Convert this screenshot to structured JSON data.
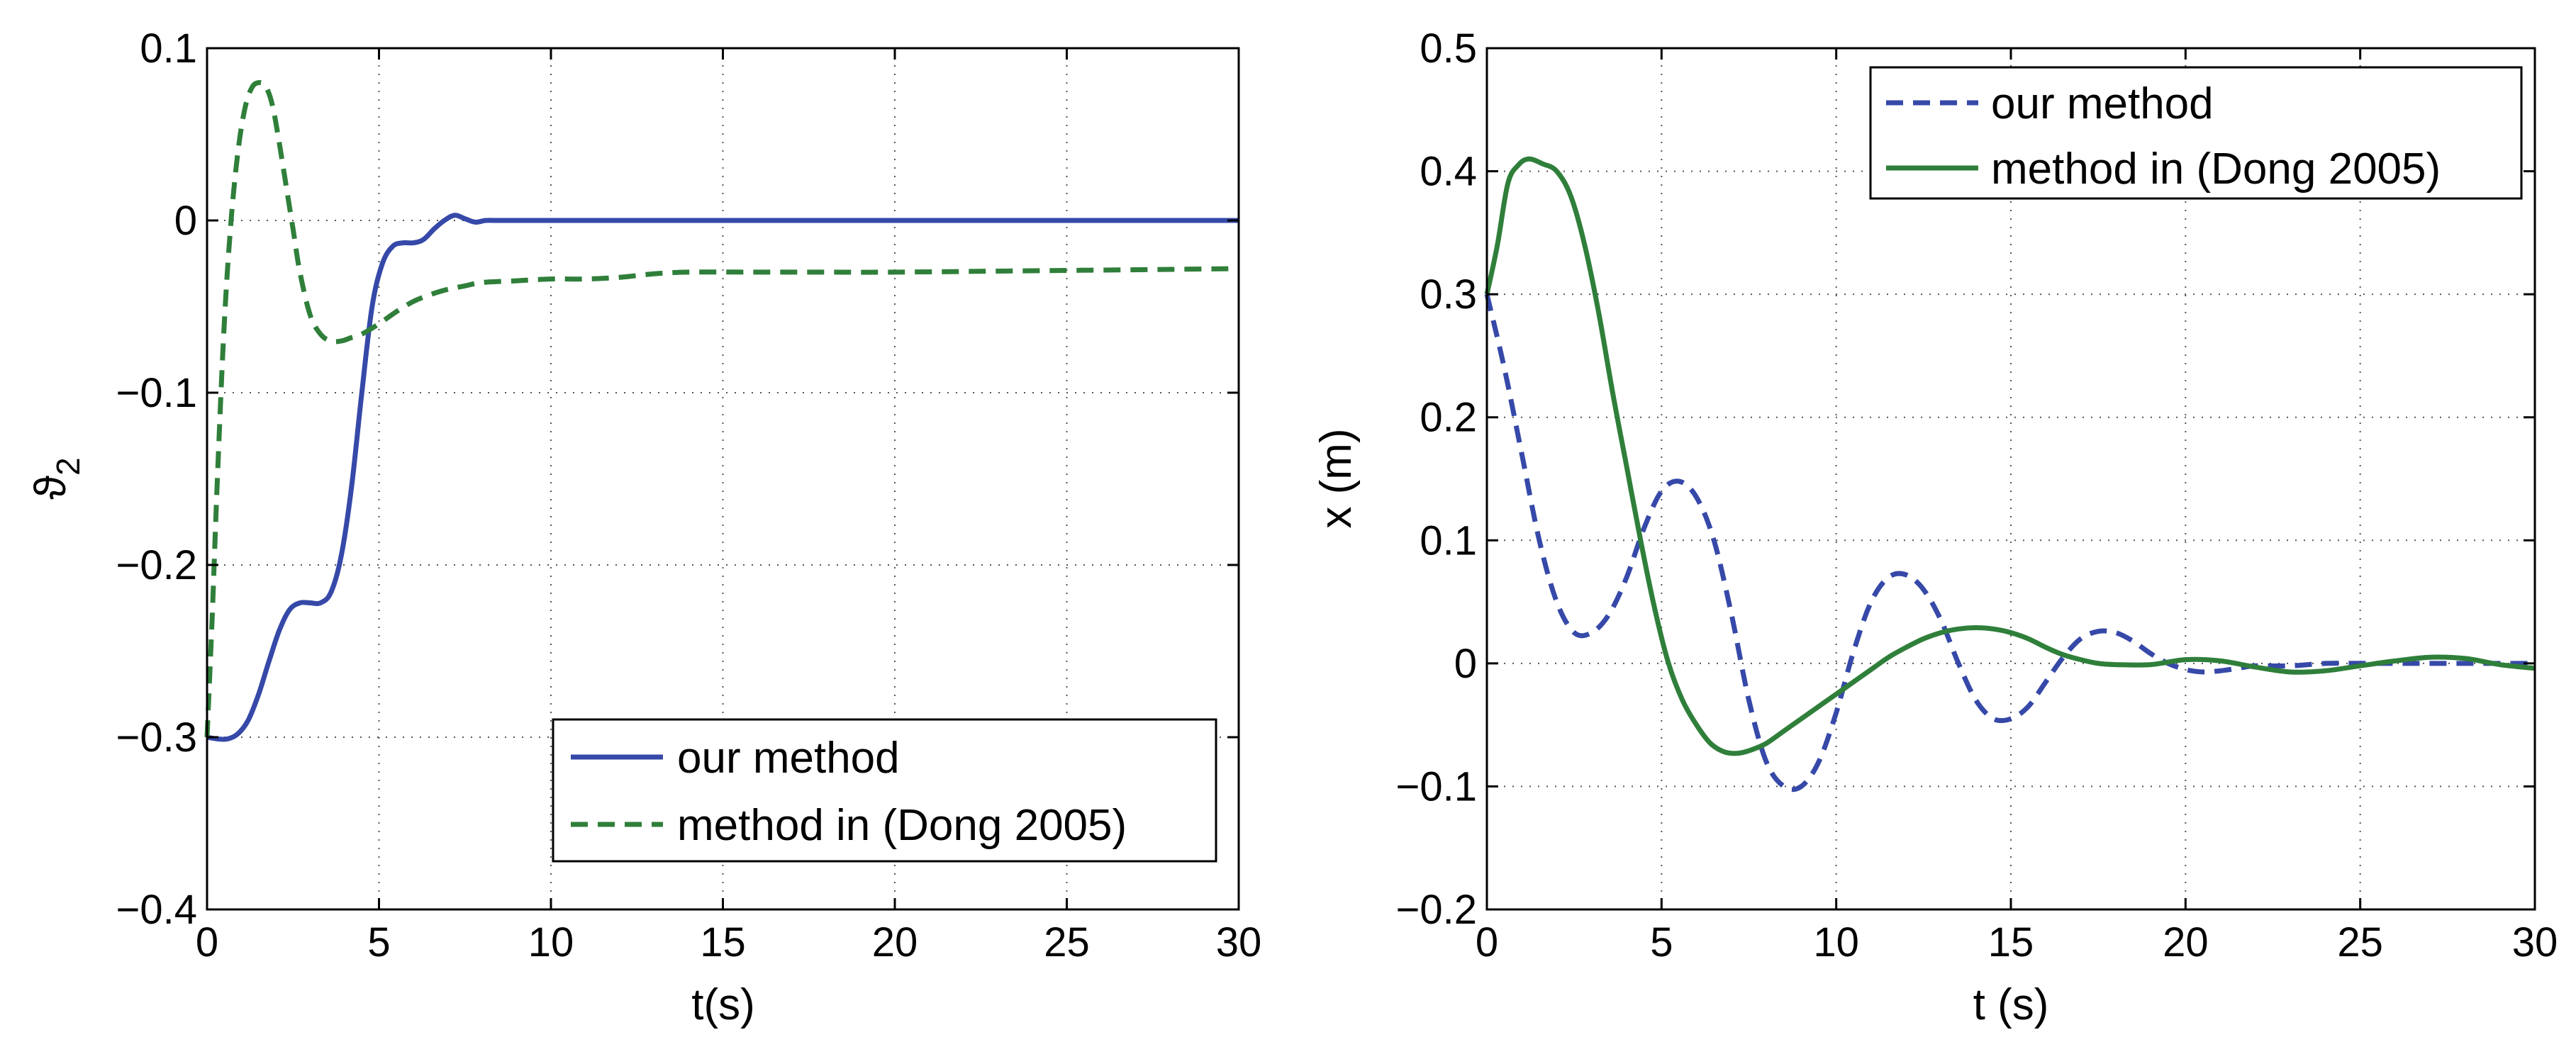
{
  "chart_data": [
    {
      "type": "line",
      "xlabel": "t(s)",
      "ylabel": "ϑ",
      "ylabel_subscript": "2",
      "xlim": [
        0,
        30
      ],
      "ylim": [
        -0.4,
        0.1
      ],
      "xticks": [
        0,
        5,
        10,
        15,
        20,
        25,
        30
      ],
      "xtick_labels": [
        "0",
        "5",
        "10",
        "15",
        "20",
        "25",
        "30"
      ],
      "yticks": [
        -0.4,
        -0.3,
        -0.2,
        -0.1,
        0,
        0.1
      ],
      "ytick_labels": [
        "−0.4",
        "−0.3",
        "−0.2",
        "−0.1",
        "0",
        "0.1"
      ],
      "grid": true,
      "legend_position": "bottom-right",
      "series": [
        {
          "name": "our method",
          "color": "#3649a8",
          "style": "solid",
          "x": [
            0,
            0.3,
            0.6,
            0.9,
            1.2,
            1.5,
            1.8,
            2.1,
            2.4,
            2.7,
            3.0,
            3.3,
            3.6,
            3.9,
            4.2,
            4.5,
            4.8,
            5.1,
            5.4,
            5.7,
            6.0,
            6.3,
            6.6,
            6.9,
            7.2,
            7.5,
            7.8,
            8.1,
            8.4,
            9.0,
            10,
            12,
            15,
            20,
            25,
            30
          ],
          "y": [
            -0.3,
            -0.301,
            -0.301,
            -0.298,
            -0.29,
            -0.275,
            -0.256,
            -0.238,
            -0.226,
            -0.222,
            -0.222,
            -0.222,
            -0.216,
            -0.195,
            -0.155,
            -0.1,
            -0.05,
            -0.025,
            -0.015,
            -0.013,
            -0.013,
            -0.011,
            -0.005,
            0.0,
            0.003,
            0.001,
            -0.001,
            0.0,
            0.0,
            0.0,
            0.0,
            0.0,
            0.0,
            0.0,
            0.0,
            0.0
          ]
        },
        {
          "name": "method in (Dong 2005)",
          "color": "#2f7f3a",
          "style": "dashed",
          "x": [
            0,
            0.15,
            0.3,
            0.5,
            0.7,
            0.9,
            1.1,
            1.3,
            1.5,
            1.7,
            1.9,
            2.1,
            2.3,
            2.5,
            2.7,
            3.0,
            3.3,
            3.6,
            3.9,
            4.2,
            4.5,
            5.0,
            5.5,
            6.0,
            6.5,
            7.0,
            7.5,
            8.0,
            9.0,
            10,
            11,
            12,
            13,
            14,
            16,
            18,
            20,
            25,
            30
          ],
          "y": [
            -0.3,
            -0.23,
            -0.15,
            -0.06,
            0.0,
            0.04,
            0.065,
            0.077,
            0.08,
            0.078,
            0.067,
            0.045,
            0.02,
            -0.005,
            -0.03,
            -0.055,
            -0.066,
            -0.07,
            -0.07,
            -0.068,
            -0.066,
            -0.06,
            -0.053,
            -0.047,
            -0.043,
            -0.04,
            -0.038,
            -0.036,
            -0.035,
            -0.034,
            -0.034,
            -0.033,
            -0.031,
            -0.03,
            -0.03,
            -0.03,
            -0.03,
            -0.029,
            -0.028
          ]
        }
      ]
    },
    {
      "type": "line",
      "xlabel": "t (s)",
      "ylabel": "x (m)",
      "xlim": [
        0,
        30
      ],
      "ylim": [
        -0.2,
        0.5
      ],
      "xticks": [
        0,
        5,
        10,
        15,
        20,
        25,
        30
      ],
      "xtick_labels": [
        "0",
        "5",
        "10",
        "15",
        "20",
        "25",
        "30"
      ],
      "yticks": [
        -0.2,
        -0.1,
        0,
        0.1,
        0.2,
        0.3,
        0.4,
        0.5
      ],
      "ytick_labels": [
        "−0.2",
        "−0.1",
        "0",
        "0.1",
        "0.2",
        "0.3",
        "0.4",
        "0.5"
      ],
      "grid": true,
      "legend_position": "top-right",
      "series": [
        {
          "name": "our method",
          "color": "#3649a8",
          "style": "dashed",
          "x": [
            0,
            0.5,
            1.0,
            1.5,
            2.0,
            2.5,
            3.0,
            3.5,
            4.0,
            4.5,
            5.0,
            5.5,
            6.0,
            6.5,
            7.0,
            7.5,
            8.0,
            8.5,
            9.0,
            9.5,
            10.0,
            10.5,
            11.0,
            11.5,
            12.0,
            12.5,
            13.0,
            13.5,
            14.0,
            14.5,
            15.0,
            15.5,
            16.0,
            16.5,
            17.0,
            17.5,
            18.0,
            18.5,
            19.0,
            19.5,
            20.0,
            20.5,
            21.0,
            21.5,
            22.0,
            23.0,
            24.0,
            25.0,
            26.0,
            27.0,
            28.0,
            29.0,
            30.0
          ],
          "y": [
            0.3,
            0.24,
            0.17,
            0.1,
            0.05,
            0.025,
            0.025,
            0.04,
            0.07,
            0.11,
            0.14,
            0.148,
            0.135,
            0.1,
            0.04,
            -0.03,
            -0.08,
            -0.1,
            -0.1,
            -0.08,
            -0.04,
            0.01,
            0.05,
            0.07,
            0.072,
            0.06,
            0.035,
            0.0,
            -0.03,
            -0.045,
            -0.045,
            -0.035,
            -0.015,
            0.005,
            0.02,
            0.026,
            0.025,
            0.018,
            0.008,
            0.0,
            -0.005,
            -0.007,
            -0.006,
            -0.004,
            -0.002,
            -0.002,
            0.0,
            0.0,
            0.0,
            0.0,
            0.0,
            0.0,
            0.0
          ]
        },
        {
          "name": "method in (Dong 2005)",
          "color": "#2f7f3a",
          "style": "solid",
          "x": [
            0,
            0.3,
            0.6,
            0.9,
            1.2,
            1.6,
            2.0,
            2.4,
            2.8,
            3.2,
            3.6,
            4.0,
            4.4,
            4.8,
            5.2,
            5.6,
            6.0,
            6.4,
            6.8,
            7.2,
            7.6,
            8.0,
            8.5,
            9.0,
            9.5,
            10.0,
            10.5,
            11.0,
            11.5,
            12.0,
            12.5,
            13.0,
            13.5,
            14.0,
            14.5,
            15.0,
            15.5,
            16.0,
            16.5,
            17.0,
            17.5,
            18.0,
            19.0,
            20.0,
            21.0,
            22.0,
            23.0,
            24.0,
            25.0,
            26.0,
            27.0,
            28.0,
            29.0,
            30.0
          ],
          "y": [
            0.3,
            0.34,
            0.39,
            0.405,
            0.41,
            0.406,
            0.4,
            0.38,
            0.34,
            0.285,
            0.22,
            0.16,
            0.1,
            0.045,
            0.0,
            -0.03,
            -0.05,
            -0.065,
            -0.072,
            -0.073,
            -0.07,
            -0.065,
            -0.055,
            -0.045,
            -0.035,
            -0.025,
            -0.015,
            -0.005,
            0.005,
            0.013,
            0.02,
            0.025,
            0.028,
            0.029,
            0.028,
            0.025,
            0.02,
            0.013,
            0.007,
            0.003,
            0.0,
            -0.001,
            -0.001,
            0.003,
            0.002,
            -0.003,
            -0.007,
            -0.006,
            -0.002,
            0.002,
            0.005,
            0.004,
            -0.001,
            -0.004
          ]
        }
      ]
    }
  ]
}
